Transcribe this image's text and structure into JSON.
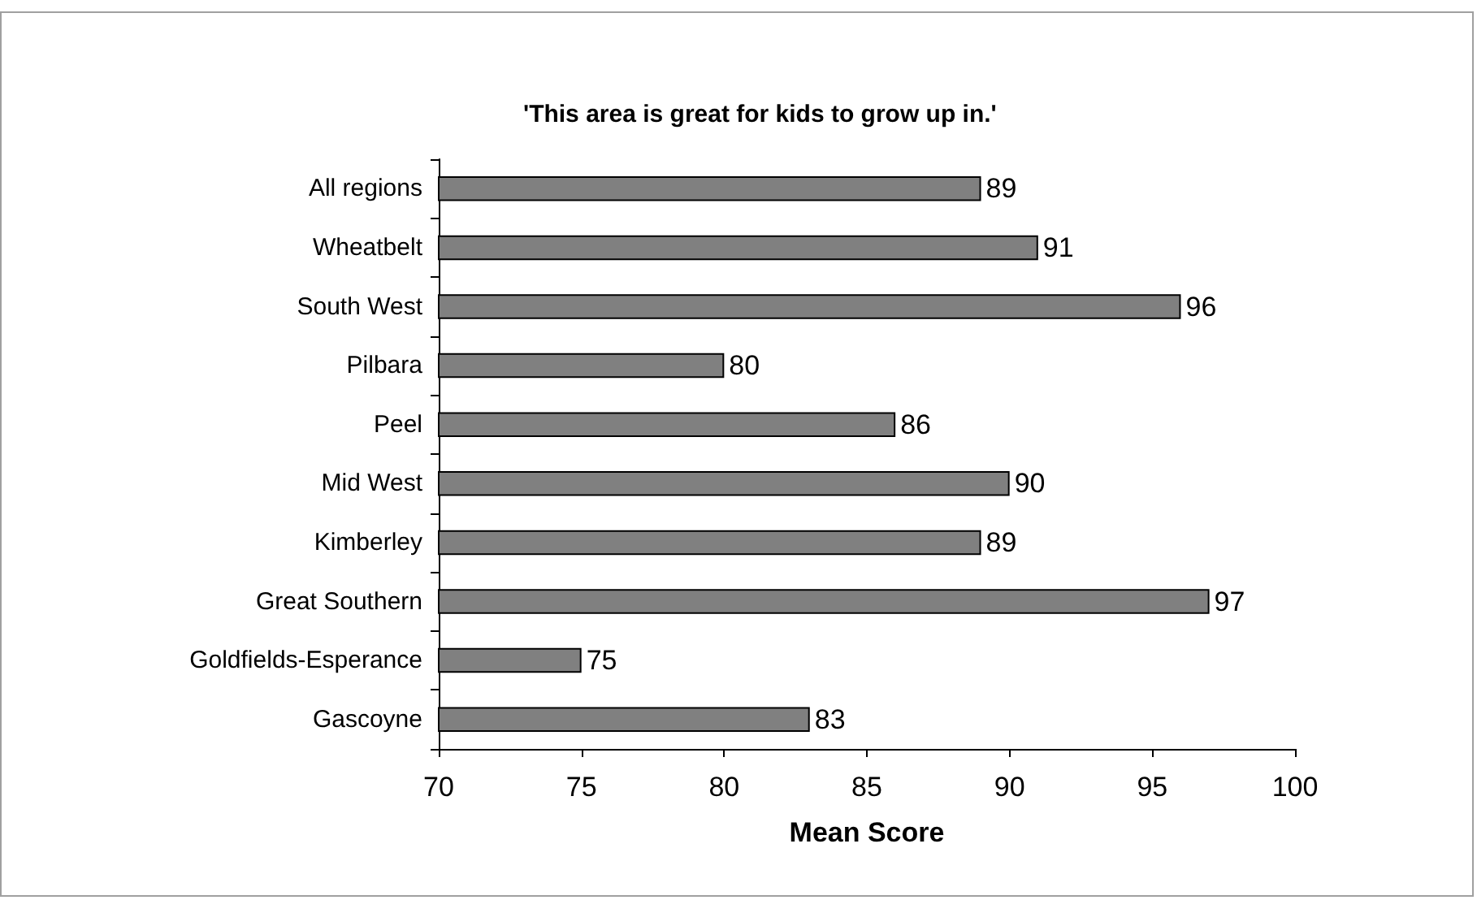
{
  "chart_data": {
    "type": "bar",
    "orientation": "horizontal",
    "title": "'This area is great for kids to grow up in.'",
    "xlabel": "Mean Score",
    "categories": [
      "All regions",
      "Wheatbelt",
      "South West",
      "Pilbara",
      "Peel",
      "Mid West",
      "Kimberley",
      "Great Southern",
      "Goldfields-Esperance",
      "Gascoyne"
    ],
    "values": [
      89,
      91,
      96,
      80,
      86,
      90,
      89,
      97,
      75,
      83
    ],
    "color": "#808080",
    "xlim": [
      70,
      100
    ],
    "xticks": [
      70,
      75,
      80,
      85,
      90,
      95,
      100
    ],
    "grid": false,
    "data_labels": true
  }
}
